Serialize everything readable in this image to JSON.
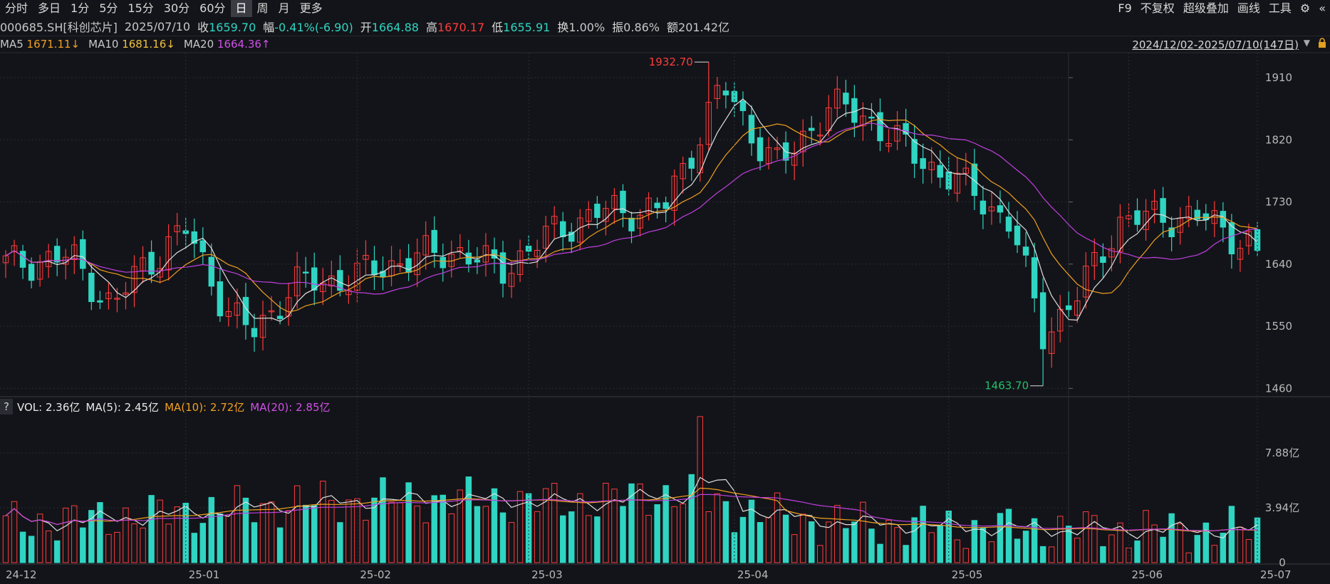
{
  "toolbar": {
    "tabs": [
      "分时",
      "多日",
      "1分",
      "5分",
      "15分",
      "30分",
      "60分",
      "日",
      "周",
      "月",
      "更多"
    ],
    "active_tab": "日",
    "right_tools": [
      "F9",
      "不复权",
      "超级叠加",
      "画线",
      "工具"
    ]
  },
  "quote": {
    "symbol": "000685.SH[科创芯片]",
    "date": "2025/07/10",
    "close_label": "收",
    "close": "1659.70",
    "change_label": "幅",
    "change": "-0.41%(-6.90)",
    "open_label": "开",
    "open": "1664.88",
    "high_label": "高",
    "high": "1670.17",
    "low_label": "低",
    "low": "1655.91",
    "turnover_label": "换",
    "turnover": "1.00%",
    "amplitude_label": "振",
    "amplitude": "0.86%",
    "amount_label": "额",
    "amount": "201.42亿"
  },
  "ma_legend": {
    "ma5_label": "MA5",
    "ma5": "1671.11↓",
    "ma10_label": "MA10",
    "ma10": "1681.16↓",
    "ma20_label": "MA20",
    "ma20": "1664.36↑"
  },
  "range": "2024/12/02-2025/07/10(147日)",
  "vol_legend": {
    "help": "?",
    "vol": "VOL: 2.36亿",
    "ma5": "MA(5): 2.45亿",
    "ma10": "MA(10): 2.72亿",
    "ma20": "MA(20): 2.85亿"
  },
  "colors": {
    "up": "#ff3b3b",
    "down": "#2fd5c2",
    "ma5": "#e0e0e0",
    "ma10": "#f0a020",
    "ma20": "#c040e0",
    "grid": "#2a2c33"
  },
  "chart_data": {
    "type": "candlestick",
    "price_axis": {
      "ticks": [
        1460,
        1550,
        1640,
        1730,
        1820,
        1910
      ],
      "ylim": [
        1450,
        1940
      ]
    },
    "volume_axis": {
      "ticks": [
        "0",
        "3.94亿",
        "7.88亿"
      ],
      "ylim": [
        0,
        10.6
      ]
    },
    "x_ticks": [
      "24-12",
      "25-01",
      "25-02",
      "25-03",
      "25-04",
      "25-05",
      "25-06",
      "25-07"
    ],
    "annotations": [
      {
        "text": "1932.70",
        "kind": "high"
      },
      {
        "text": "1463.70",
        "kind": "low"
      }
    ],
    "series": [
      {
        "name": "MA5"
      },
      {
        "name": "MA10"
      },
      {
        "name": "MA20"
      }
    ]
  }
}
